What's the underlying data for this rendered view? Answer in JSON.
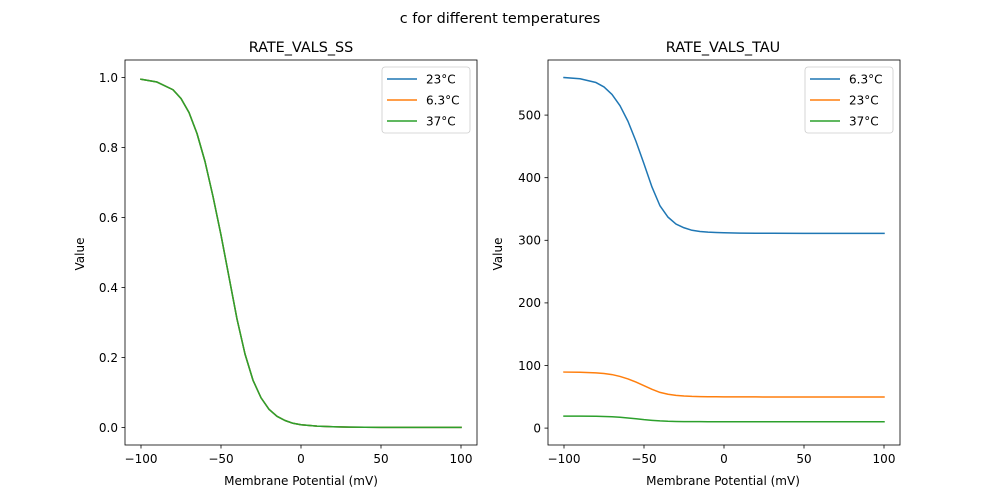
{
  "figure": {
    "suptitle": "c for different temperatures"
  },
  "chart_data": [
    {
      "type": "line",
      "title": "RATE_VALS_SS",
      "xlabel": "Membrane Potential (mV)",
      "ylabel": "Value",
      "xlim": [
        -110,
        110
      ],
      "ylim": [
        -0.05,
        1.05
      ],
      "xticks": [
        -100,
        -50,
        0,
        50,
        100
      ],
      "xtick_labels": [
        "−100",
        "−50",
        "0",
        "50",
        "100"
      ],
      "yticks": [
        0.0,
        0.2,
        0.4,
        0.6,
        0.8,
        1.0
      ],
      "ytick_labels": [
        "0.0",
        "0.2",
        "0.4",
        "0.6",
        "0.8",
        "1.0"
      ],
      "grid": false,
      "legend": "top-right",
      "x": [
        -100,
        -90,
        -80,
        -75,
        -70,
        -65,
        -60,
        -55,
        -50,
        -45,
        -40,
        -35,
        -30,
        -25,
        -20,
        -15,
        -10,
        -5,
        0,
        10,
        20,
        30,
        50,
        75,
        100
      ],
      "series": [
        {
          "name": "23°C",
          "color": "#1f77b4",
          "values": [
            0.995,
            0.987,
            0.965,
            0.94,
            0.9,
            0.84,
            0.76,
            0.66,
            0.55,
            0.43,
            0.31,
            0.21,
            0.135,
            0.085,
            0.052,
            0.032,
            0.02,
            0.012,
            0.008,
            0.004,
            0.002,
            0.001,
            0.0005,
            0.0003,
            0.0002
          ]
        },
        {
          "name": "6.3°C",
          "color": "#ff7f0e",
          "values": [
            0.995,
            0.987,
            0.965,
            0.94,
            0.9,
            0.84,
            0.76,
            0.66,
            0.55,
            0.43,
            0.31,
            0.21,
            0.135,
            0.085,
            0.052,
            0.032,
            0.02,
            0.012,
            0.008,
            0.004,
            0.002,
            0.001,
            0.0005,
            0.0003,
            0.0002
          ]
        },
        {
          "name": "37°C",
          "color": "#2ca02c",
          "values": [
            0.995,
            0.987,
            0.965,
            0.94,
            0.9,
            0.84,
            0.76,
            0.66,
            0.55,
            0.43,
            0.31,
            0.21,
            0.135,
            0.085,
            0.052,
            0.032,
            0.02,
            0.012,
            0.008,
            0.004,
            0.002,
            0.001,
            0.0005,
            0.0003,
            0.0002
          ]
        }
      ]
    },
    {
      "type": "line",
      "title": "RATE_VALS_TAU",
      "xlabel": "Membrane Potential (mV)",
      "ylabel": "Value",
      "xlim": [
        -110,
        110
      ],
      "ylim": [
        -27,
        588
      ],
      "xticks": [
        -100,
        -50,
        0,
        50,
        100
      ],
      "xtick_labels": [
        "−100",
        "−50",
        "0",
        "50",
        "100"
      ],
      "yticks": [
        0,
        100,
        200,
        300,
        400,
        500
      ],
      "ytick_labels": [
        "0",
        "100",
        "200",
        "300",
        "400",
        "500"
      ],
      "grid": false,
      "legend": "top-right",
      "x": [
        -100,
        -90,
        -80,
        -75,
        -70,
        -65,
        -60,
        -55,
        -50,
        -45,
        -40,
        -35,
        -30,
        -25,
        -20,
        -15,
        -10,
        -5,
        0,
        10,
        20,
        30,
        50,
        75,
        100
      ],
      "series": [
        {
          "name": "6.3°C",
          "color": "#1f77b4",
          "values": [
            560,
            558,
            552,
            545,
            533,
            515,
            490,
            458,
            422,
            385,
            355,
            337,
            326,
            320,
            316,
            314,
            313,
            312.5,
            312,
            311.5,
            311.3,
            311.2,
            311.1,
            311,
            311
          ]
        },
        {
          "name": "23°C",
          "color": "#ff7f0e",
          "values": [
            89.5,
            89.2,
            88.2,
            87.2,
            85.5,
            82.5,
            78.5,
            73.5,
            67.8,
            62,
            57,
            54,
            52.2,
            51.2,
            50.6,
            50.3,
            50.1,
            50,
            49.9,
            49.8,
            49.8,
            49.7,
            49.7,
            49.7,
            49.7
          ]
        },
        {
          "name": "37°C",
          "color": "#2ca02c",
          "values": [
            19.2,
            19.1,
            18.9,
            18.6,
            18.1,
            17.3,
            16.2,
            14.9,
            13.5,
            12.4,
            11.5,
            10.9,
            10.6,
            10.4,
            10.3,
            10.25,
            10.2,
            10.2,
            10.2,
            10.15,
            10.15,
            10.1,
            10.1,
            10.1,
            10.1
          ]
        }
      ]
    }
  ]
}
